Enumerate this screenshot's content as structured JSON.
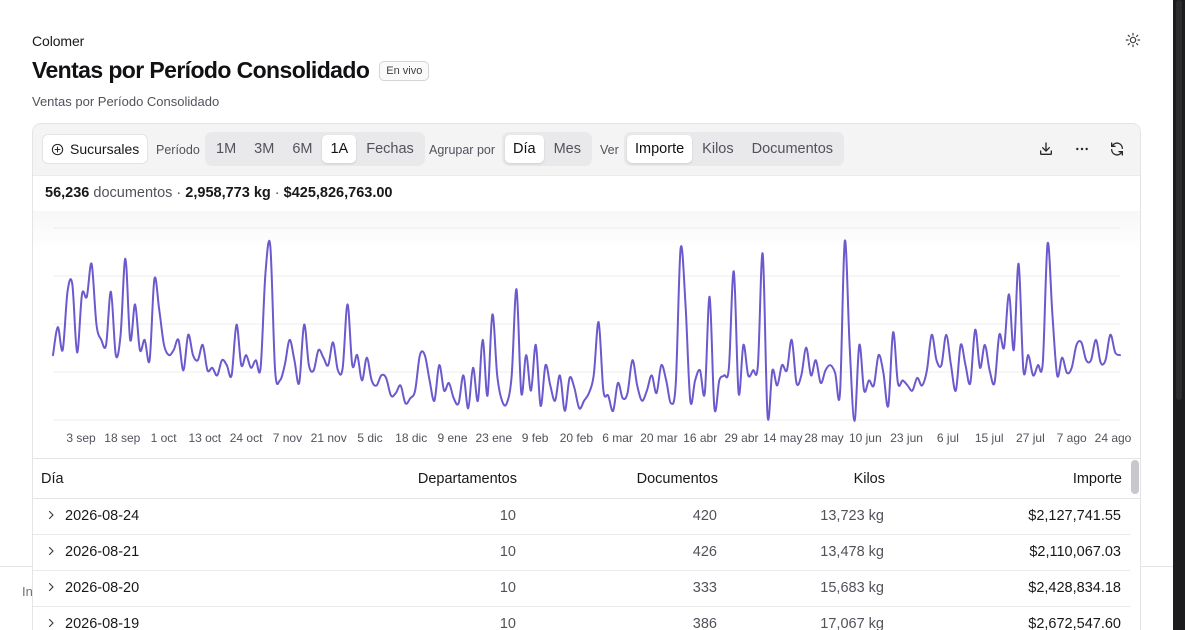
{
  "header": {
    "company": "Colomer",
    "title": "Ventas por Período Consolidado",
    "badge": "En vivo",
    "subtitle": "Ventas por Período Consolidado"
  },
  "icons": {
    "theme": "sun-icon",
    "branches": "plus-circle-icon",
    "download": "download-icon",
    "more": "more-horizontal-icon",
    "refresh": "refresh-icon",
    "row_expand": "chevron-right-icon"
  },
  "toolbar": {
    "branches_label": "Sucursales",
    "period_label": "Período",
    "periods": [
      "1M",
      "3M",
      "6M",
      "1A",
      "Fechas"
    ],
    "period_selected": "1A",
    "group_label": "Agrupar por",
    "groups": [
      "Día",
      "Mes"
    ],
    "group_selected": "Día",
    "view_label": "Ver",
    "views": [
      "Importe",
      "Kilos",
      "Documentos"
    ],
    "view_selected": "Importe"
  },
  "summary": {
    "documents_value": "56,236",
    "documents_word": "documentos",
    "sep1": " · ",
    "kilos": "2,958,773 kg",
    "sep2": " · ",
    "amount": "$425,826,763.00"
  },
  "colors": {
    "line": "#6a5acd",
    "grid": "#ececef",
    "active_seg_bg": "#ffffff"
  },
  "chart_data": {
    "type": "line",
    "x_tick_labels": [
      "3 sep",
      "18 sep",
      "1 oct",
      "13 oct",
      "24 oct",
      "7 nov",
      "21 nov",
      "5 dic",
      "18 dic",
      "9 ene",
      "23 ene",
      "9 feb",
      "20 feb",
      "6 mar",
      "20 mar",
      "16 abr",
      "29 abr",
      "14 may",
      "28 may",
      "10 jun",
      "23 jun",
      "6 jul",
      "15 jul",
      "27 jul",
      "7 ago",
      "24 ago"
    ],
    "y_axis_labels_visible": false,
    "grid": true,
    "series": [
      {
        "values": [
          1.3,
          1.85,
          1.4,
          2.55,
          2.7,
          1.35,
          2.5,
          2.45,
          3.1,
          1.9,
          1.6,
          1.5,
          2.55,
          1.3,
          1.7,
          3.2,
          1.6,
          2.3,
          1.4,
          1.6,
          1.2,
          2.8,
          2.2,
          1.5,
          1.3,
          1.4,
          1.6,
          1.0,
          1.7,
          1.3,
          1.2,
          1.5,
          1.0,
          1.05,
          0.9,
          1.2,
          1.1,
          0.9,
          1.9,
          1.1,
          1.3,
          1.05,
          1.2,
          1.05,
          2.9,
          3.45,
          1.0,
          0.8,
          1.1,
          1.6,
          1.2,
          0.75,
          1.9,
          1.1,
          1.0,
          1.4,
          1.25,
          1.1,
          1.55,
          1.0,
          1.05,
          2.3,
          1.1,
          1.3,
          0.8,
          1.25,
          0.8,
          0.7,
          0.9,
          0.85,
          0.5,
          0.55,
          0.7,
          0.35,
          0.45,
          0.6,
          1.3,
          1.3,
          0.8,
          0.4,
          1.1,
          0.6,
          0.75,
          0.45,
          0.35,
          0.9,
          0.25,
          1.05,
          0.4,
          1.6,
          0.5,
          2.1,
          0.9,
          0.4,
          0.35,
          0.9,
          2.6,
          0.55,
          1.3,
          0.6,
          1.5,
          0.3,
          1.1,
          0.7,
          0.4,
          0.9,
          0.2,
          0.85,
          0.65,
          0.25,
          0.4,
          0.55,
          0.9,
          1.95,
          0.6,
          0.5,
          0.2,
          0.75,
          0.45,
          0.55,
          1.2,
          0.7,
          0.4,
          0.6,
          0.9,
          0.55,
          1.1,
          0.8,
          0.35,
          0.75,
          3.4,
          2.3,
          0.4,
          0.8,
          1.0,
          0.55,
          2.45,
          0.25,
          0.8,
          0.9,
          1.05,
          2.95,
          0.55,
          1.5,
          0.9,
          1.0,
          1.1,
          3.3,
          0.1,
          1.0,
          0.7,
          1.1,
          1.0,
          1.6,
          0.75,
          0.9,
          1.45,
          0.9,
          1.2,
          0.75,
          1.0,
          1.1,
          0.95,
          0.55,
          3.55,
          1.5,
          0.0,
          1.5,
          0.6,
          0.8,
          0.7,
          1.3,
          0.95,
          0.3,
          1.75,
          0.75,
          0.8,
          0.7,
          0.6,
          0.85,
          0.7,
          1.0,
          1.7,
          1.2,
          1.1,
          1.7,
          1.1,
          0.6,
          1.5,
          1.1,
          0.75,
          1.8,
          1.05,
          1.5,
          1.0,
          0.75,
          1.7,
          1.45,
          2.5,
          1.4,
          3.1,
          1.0,
          1.3,
          0.9,
          1.1,
          1.15,
          3.5,
          2.1,
          0.9,
          1.25,
          0.95,
          1.05,
          1.5,
          1.55,
          1.2,
          1.2,
          1.6,
          1.15,
          1.2,
          1.7,
          1.35,
          1.3
        ]
      }
    ]
  },
  "table": {
    "headers": {
      "day": "Día",
      "departments": "Departamentos",
      "documents": "Documentos",
      "kilos": "Kilos",
      "amount": "Importe"
    },
    "rows": [
      {
        "day": "2026-08-24",
        "departments": "10",
        "documents": "420",
        "kilos": "13,723 kg",
        "amount": "$2,127,741.55"
      },
      {
        "day": "2026-08-21",
        "departments": "10",
        "documents": "426",
        "kilos": "13,478 kg",
        "amount": "$2,110,067.03"
      },
      {
        "day": "2026-08-20",
        "departments": "10",
        "documents": "333",
        "kilos": "15,683 kg",
        "amount": "$2,428,834.18"
      },
      {
        "day": "2026-08-19",
        "departments": "10",
        "documents": "386",
        "kilos": "17,067 kg",
        "amount": "$2,672,547.60"
      }
    ]
  },
  "background": {
    "partial_text": "In"
  }
}
